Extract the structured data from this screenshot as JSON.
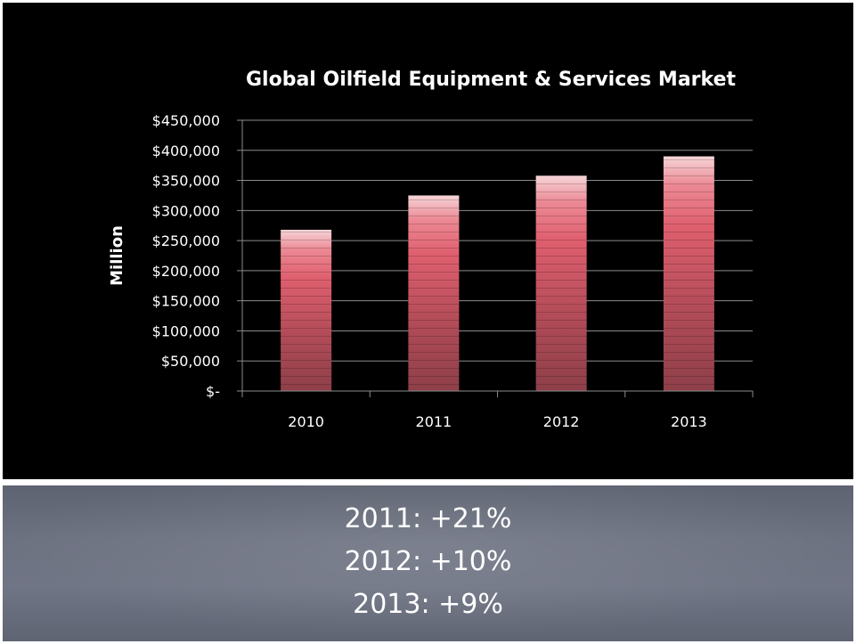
{
  "chart_data": {
    "type": "bar",
    "title": "Global Oilfield Equipment & Services Market",
    "ylabel": "Million",
    "xlabel": "",
    "categories": [
      "2010",
      "2011",
      "2012",
      "2013"
    ],
    "values": [
      268000,
      325000,
      358000,
      390000
    ],
    "ylim": [
      0,
      450000
    ],
    "yticks": [
      0,
      50000,
      100000,
      150000,
      200000,
      250000,
      300000,
      350000,
      400000,
      450000
    ],
    "ytick_labels": [
      "$-",
      "$50,000",
      "$100,000",
      "$150,000",
      "$200,000",
      "$250,000",
      "$300,000",
      "$350,000",
      "$400,000",
      "$450,000"
    ],
    "grid": true,
    "legend": "none",
    "colors": {
      "bar_top": "#f4c7cc",
      "bar_mid": "#e2606f",
      "bar_bottom": "#96404c",
      "background": "#000000",
      "text": "#ffffff"
    }
  },
  "notes": [
    "2011:  +21%",
    "2012:  +10%",
    "2013:  +9%"
  ]
}
